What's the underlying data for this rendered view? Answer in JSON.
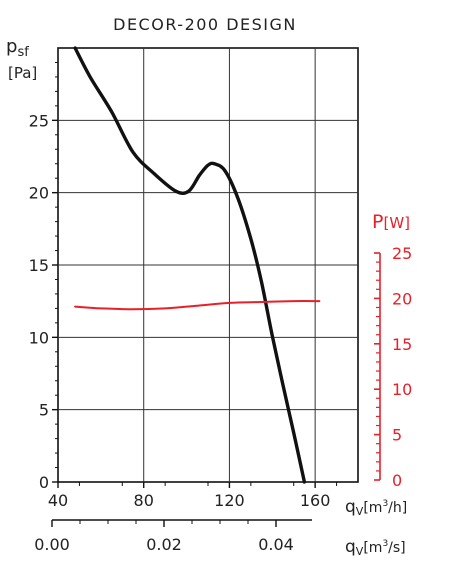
{
  "chart_data": {
    "type": "line",
    "title": "DECOR-200 DESIGN",
    "y_axis": {
      "label_main": "p",
      "label_sub": "sf",
      "unit": "[Pa]",
      "ylim": [
        0,
        30
      ],
      "ticks": [
        "0",
        "5",
        "10",
        "15",
        "20",
        "25"
      ]
    },
    "x_axis_flow_h": {
      "label_main": "q",
      "label_sub": "V",
      "unit": "[m",
      "unit_sup": "3",
      "unit_end": "/h]",
      "xlim": [
        40,
        180
      ],
      "ticks": [
        "40",
        "80",
        "120",
        "160"
      ]
    },
    "x_axis_flow_s": {
      "label_main": "q",
      "label_sub": "V",
      "unit": "[m",
      "unit_sup": "3",
      "unit_end": "/s]",
      "ticks": [
        "0.00",
        "0.02",
        "0.04"
      ]
    },
    "power_axis": {
      "label_main": "P",
      "unit": "[W]",
      "ylim": [
        0,
        25
      ],
      "ticks": [
        "0",
        "5",
        "10",
        "15",
        "20",
        "25"
      ],
      "color": "#e8202a"
    },
    "series": [
      {
        "axis": "pressure",
        "color": "#111111",
        "points": [
          [
            48,
            30
          ],
          [
            55,
            28
          ],
          [
            65,
            25.6
          ],
          [
            75,
            22.8
          ],
          [
            85,
            21.3
          ],
          [
            95,
            20.1
          ],
          [
            101,
            20.1
          ],
          [
            106,
            21.2
          ],
          [
            110,
            21.9
          ],
          [
            113,
            22
          ],
          [
            118,
            21.5
          ],
          [
            124,
            19.6
          ],
          [
            130,
            16.8
          ],
          [
            135,
            13.8
          ],
          [
            140,
            10.1
          ],
          [
            145,
            6.7
          ],
          [
            150,
            3.4
          ],
          [
            155,
            0
          ]
        ]
      },
      {
        "axis": "power",
        "color": "#e8202a",
        "points": [
          [
            48,
            19.1
          ],
          [
            60,
            18.9
          ],
          [
            75,
            18.8
          ],
          [
            90,
            18.9
          ],
          [
            105,
            19.2
          ],
          [
            120,
            19.5
          ],
          [
            135,
            19.6
          ],
          [
            150,
            19.7
          ],
          [
            162,
            19.7
          ]
        ]
      }
    ],
    "grid": true
  }
}
